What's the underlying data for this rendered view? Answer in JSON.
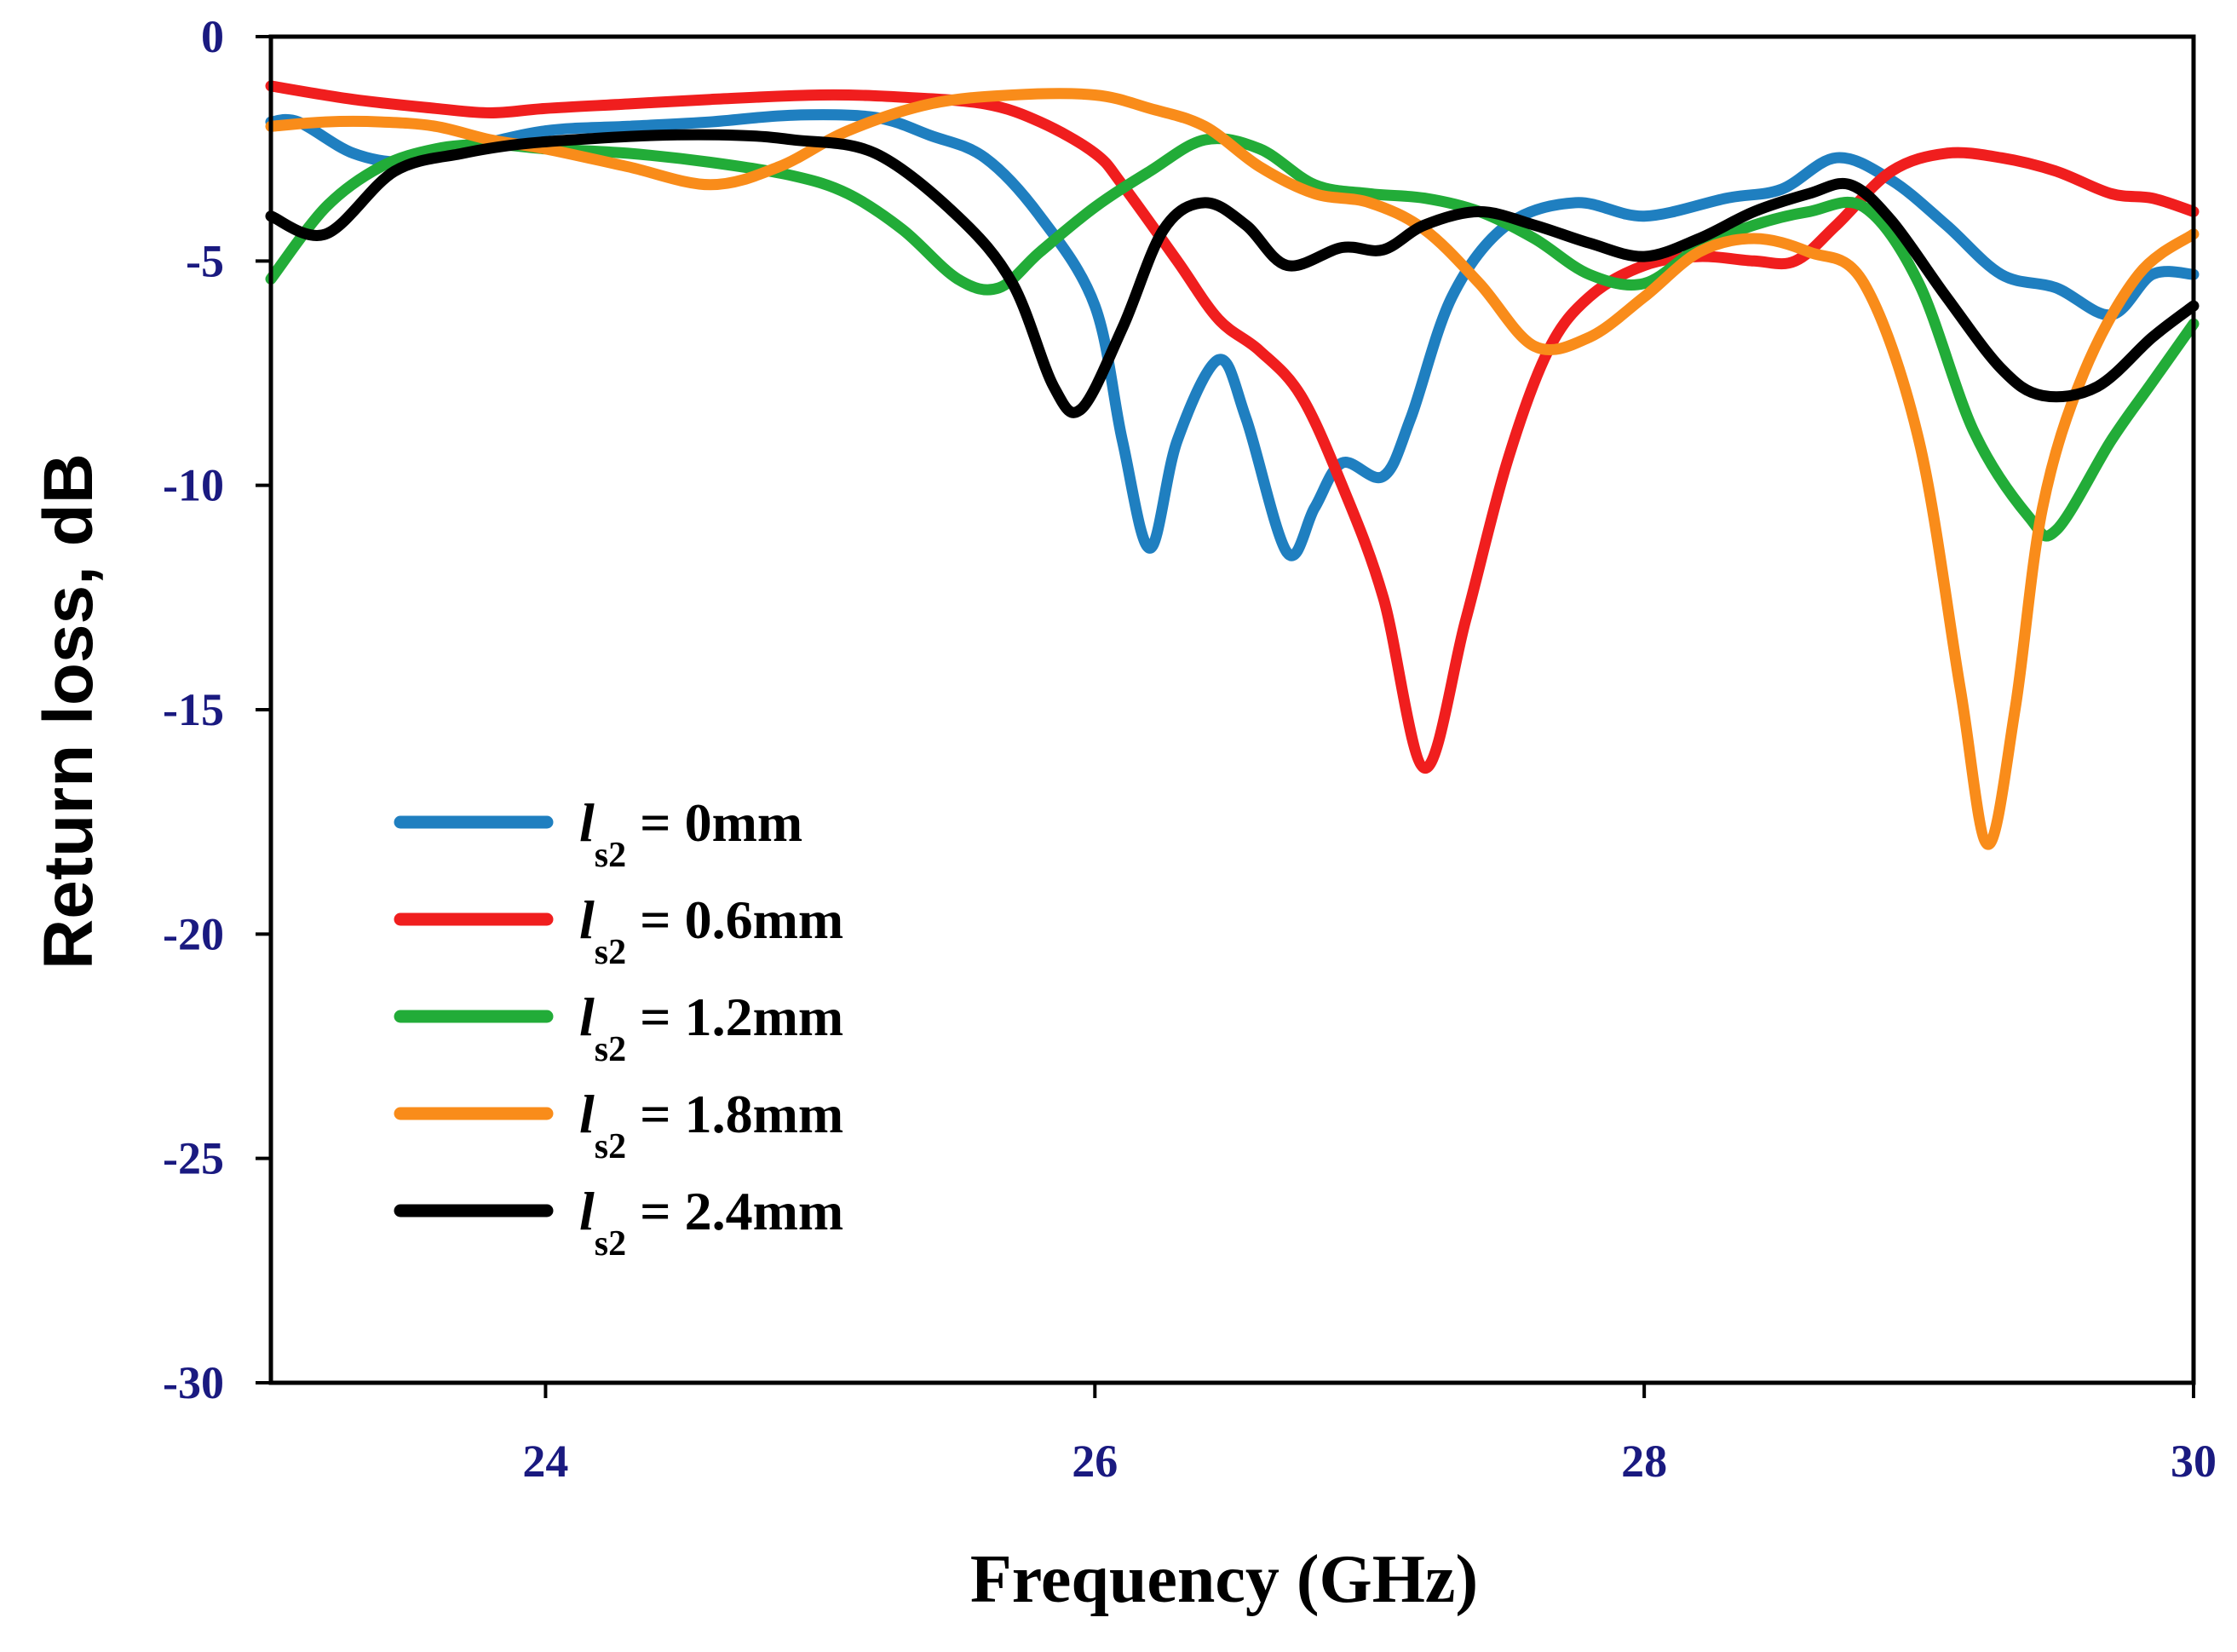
{
  "chart_data": {
    "type": "line",
    "title": "",
    "xlabel": "Frequency (GHz)",
    "ylabel": "Return loss, dB",
    "xlim": [
      23,
      30
    ],
    "ylim": [
      -30,
      0
    ],
    "xticks": [
      24,
      26,
      28,
      30
    ],
    "xtick_labels": [
      "24",
      "26",
      "28",
      "30"
    ],
    "yticks": [
      0,
      -5,
      -10,
      -15,
      -20,
      -25,
      -30
    ],
    "ytick_labels": [
      "0",
      "-5",
      "-10",
      "-15",
      "-20",
      "-25",
      "-30"
    ],
    "grid": false,
    "legend_position": "lower-left",
    "series": [
      {
        "name": "ls2 = 0mm",
        "legend_var": "l",
        "legend_sub": "s2",
        "legend_rest": " = 0mm",
        "color": "#1f7fc0",
        "points": [
          [
            23.0,
            -1.9
          ],
          [
            23.1,
            -1.9
          ],
          [
            23.3,
            -2.6
          ],
          [
            23.5,
            -2.8
          ],
          [
            23.7,
            -2.5
          ],
          [
            24.0,
            -2.1
          ],
          [
            24.3,
            -2.0
          ],
          [
            24.6,
            -1.9
          ],
          [
            24.9,
            -1.75
          ],
          [
            25.2,
            -1.8
          ],
          [
            25.4,
            -2.2
          ],
          [
            25.6,
            -2.7
          ],
          [
            25.8,
            -4.0
          ],
          [
            26.0,
            -6.0
          ],
          [
            26.1,
            -9.0
          ],
          [
            26.2,
            -11.4
          ],
          [
            26.3,
            -9.0
          ],
          [
            26.45,
            -7.2
          ],
          [
            26.55,
            -8.5
          ],
          [
            26.7,
            -11.5
          ],
          [
            26.8,
            -10.5
          ],
          [
            26.9,
            -9.5
          ],
          [
            27.05,
            -9.8
          ],
          [
            27.15,
            -8.5
          ],
          [
            27.3,
            -5.8
          ],
          [
            27.5,
            -4.2
          ],
          [
            27.75,
            -3.7
          ],
          [
            28.0,
            -4.0
          ],
          [
            28.3,
            -3.6
          ],
          [
            28.5,
            -3.4
          ],
          [
            28.7,
            -2.7
          ],
          [
            28.9,
            -3.2
          ],
          [
            29.1,
            -4.2
          ],
          [
            29.3,
            -5.3
          ],
          [
            29.5,
            -5.6
          ],
          [
            29.7,
            -6.2
          ],
          [
            29.85,
            -5.3
          ],
          [
            30.0,
            -5.3
          ]
        ]
      },
      {
        "name": "ls2 = 0.6mm",
        "legend_var": "l",
        "legend_sub": "s2",
        "legend_rest": " = 0.6mm",
        "color": "#f01e1e",
        "points": [
          [
            23.0,
            -1.1
          ],
          [
            23.3,
            -1.4
          ],
          [
            23.6,
            -1.6
          ],
          [
            23.8,
            -1.7
          ],
          [
            24.0,
            -1.6
          ],
          [
            24.3,
            -1.5
          ],
          [
            24.6,
            -1.4
          ],
          [
            25.0,
            -1.3
          ],
          [
            25.3,
            -1.35
          ],
          [
            25.6,
            -1.5
          ],
          [
            25.8,
            -1.9
          ],
          [
            26.0,
            -2.6
          ],
          [
            26.1,
            -3.3
          ],
          [
            26.3,
            -5.0
          ],
          [
            26.45,
            -6.3
          ],
          [
            26.6,
            -7.0
          ],
          [
            26.75,
            -8.0
          ],
          [
            26.9,
            -10.0
          ],
          [
            27.05,
            -12.5
          ],
          [
            27.2,
            -16.3
          ],
          [
            27.35,
            -13.0
          ],
          [
            27.5,
            -9.5
          ],
          [
            27.65,
            -7.0
          ],
          [
            27.8,
            -5.8
          ],
          [
            28.0,
            -5.1
          ],
          [
            28.2,
            -4.9
          ],
          [
            28.4,
            -5.0
          ],
          [
            28.55,
            -5.0
          ],
          [
            28.7,
            -4.2
          ],
          [
            28.9,
            -3.0
          ],
          [
            29.1,
            -2.6
          ],
          [
            29.3,
            -2.7
          ],
          [
            29.5,
            -3.0
          ],
          [
            29.7,
            -3.5
          ],
          [
            29.85,
            -3.6
          ],
          [
            30.0,
            -3.9
          ]
        ]
      },
      {
        "name": "ls2 = 1.2mm",
        "legend_var": "l",
        "legend_sub": "s2",
        "legend_rest": " = 1.2mm",
        "color": "#22ac38",
        "points": [
          [
            23.0,
            -5.4
          ],
          [
            23.2,
            -3.8
          ],
          [
            23.4,
            -2.9
          ],
          [
            23.6,
            -2.5
          ],
          [
            23.8,
            -2.4
          ],
          [
            24.0,
            -2.5
          ],
          [
            24.3,
            -2.6
          ],
          [
            24.6,
            -2.8
          ],
          [
            24.9,
            -3.1
          ],
          [
            25.1,
            -3.5
          ],
          [
            25.3,
            -4.3
          ],
          [
            25.5,
            -5.4
          ],
          [
            25.65,
            -5.6
          ],
          [
            25.8,
            -4.8
          ],
          [
            26.0,
            -3.8
          ],
          [
            26.2,
            -3.0
          ],
          [
            26.4,
            -2.3
          ],
          [
            26.6,
            -2.5
          ],
          [
            26.8,
            -3.3
          ],
          [
            27.0,
            -3.5
          ],
          [
            27.2,
            -3.6
          ],
          [
            27.4,
            -3.9
          ],
          [
            27.6,
            -4.5
          ],
          [
            27.8,
            -5.3
          ],
          [
            28.0,
            -5.5
          ],
          [
            28.2,
            -4.7
          ],
          [
            28.4,
            -4.2
          ],
          [
            28.6,
            -3.9
          ],
          [
            28.8,
            -3.8
          ],
          [
            29.0,
            -5.5
          ],
          [
            29.2,
            -8.8
          ],
          [
            29.4,
            -10.7
          ],
          [
            29.5,
            -11.0
          ],
          [
            29.7,
            -9.0
          ],
          [
            29.85,
            -7.7
          ],
          [
            30.0,
            -6.4
          ]
        ]
      },
      {
        "name": "ls2 = 1.8mm",
        "legend_var": "l",
        "legend_sub": "s2",
        "legend_rest": " = 1.8mm",
        "color": "#f98c1a",
        "points": [
          [
            23.0,
            -2.0
          ],
          [
            23.2,
            -1.9
          ],
          [
            23.4,
            -1.9
          ],
          [
            23.6,
            -2.0
          ],
          [
            23.8,
            -2.3
          ],
          [
            24.0,
            -2.5
          ],
          [
            24.3,
            -2.9
          ],
          [
            24.6,
            -3.3
          ],
          [
            24.85,
            -2.9
          ],
          [
            25.1,
            -2.1
          ],
          [
            25.4,
            -1.5
          ],
          [
            25.7,
            -1.3
          ],
          [
            26.0,
            -1.3
          ],
          [
            26.2,
            -1.6
          ],
          [
            26.4,
            -2.0
          ],
          [
            26.6,
            -2.9
          ],
          [
            26.8,
            -3.5
          ],
          [
            27.0,
            -3.7
          ],
          [
            27.2,
            -4.3
          ],
          [
            27.4,
            -5.5
          ],
          [
            27.6,
            -6.9
          ],
          [
            27.8,
            -6.7
          ],
          [
            28.0,
            -5.8
          ],
          [
            28.2,
            -4.8
          ],
          [
            28.4,
            -4.5
          ],
          [
            28.6,
            -4.8
          ],
          [
            28.8,
            -5.5
          ],
          [
            29.0,
            -9.0
          ],
          [
            29.15,
            -14.5
          ],
          [
            29.25,
            -18.0
          ],
          [
            29.35,
            -15.0
          ],
          [
            29.45,
            -10.5
          ],
          [
            29.6,
            -7.5
          ],
          [
            29.8,
            -5.3
          ],
          [
            30.0,
            -4.4
          ]
        ]
      },
      {
        "name": "ls2 = 2.4mm",
        "legend_var": "l",
        "legend_sub": "s2",
        "legend_rest": " = 2.4mm",
        "color": "#000000",
        "points": [
          [
            23.0,
            -4.0
          ],
          [
            23.2,
            -4.4
          ],
          [
            23.45,
            -3.0
          ],
          [
            23.7,
            -2.6
          ],
          [
            23.9,
            -2.4
          ],
          [
            24.1,
            -2.3
          ],
          [
            24.4,
            -2.2
          ],
          [
            24.7,
            -2.2
          ],
          [
            24.9,
            -2.3
          ],
          [
            25.2,
            -2.6
          ],
          [
            25.5,
            -4.0
          ],
          [
            25.7,
            -5.5
          ],
          [
            25.85,
            -7.8
          ],
          [
            25.95,
            -8.3
          ],
          [
            26.1,
            -6.5
          ],
          [
            26.25,
            -4.3
          ],
          [
            26.4,
            -3.7
          ],
          [
            26.55,
            -4.2
          ],
          [
            26.7,
            -5.1
          ],
          [
            26.9,
            -4.7
          ],
          [
            27.05,
            -4.75
          ],
          [
            27.2,
            -4.2
          ],
          [
            27.4,
            -3.9
          ],
          [
            27.6,
            -4.2
          ],
          [
            27.8,
            -4.6
          ],
          [
            28.0,
            -4.9
          ],
          [
            28.2,
            -4.5
          ],
          [
            28.4,
            -3.9
          ],
          [
            28.6,
            -3.5
          ],
          [
            28.75,
            -3.3
          ],
          [
            28.9,
            -4.1
          ],
          [
            29.1,
            -5.8
          ],
          [
            29.3,
            -7.4
          ],
          [
            29.45,
            -8.0
          ],
          [
            29.65,
            -7.8
          ],
          [
            29.85,
            -6.7
          ],
          [
            30.0,
            -6.0
          ]
        ]
      }
    ]
  }
}
